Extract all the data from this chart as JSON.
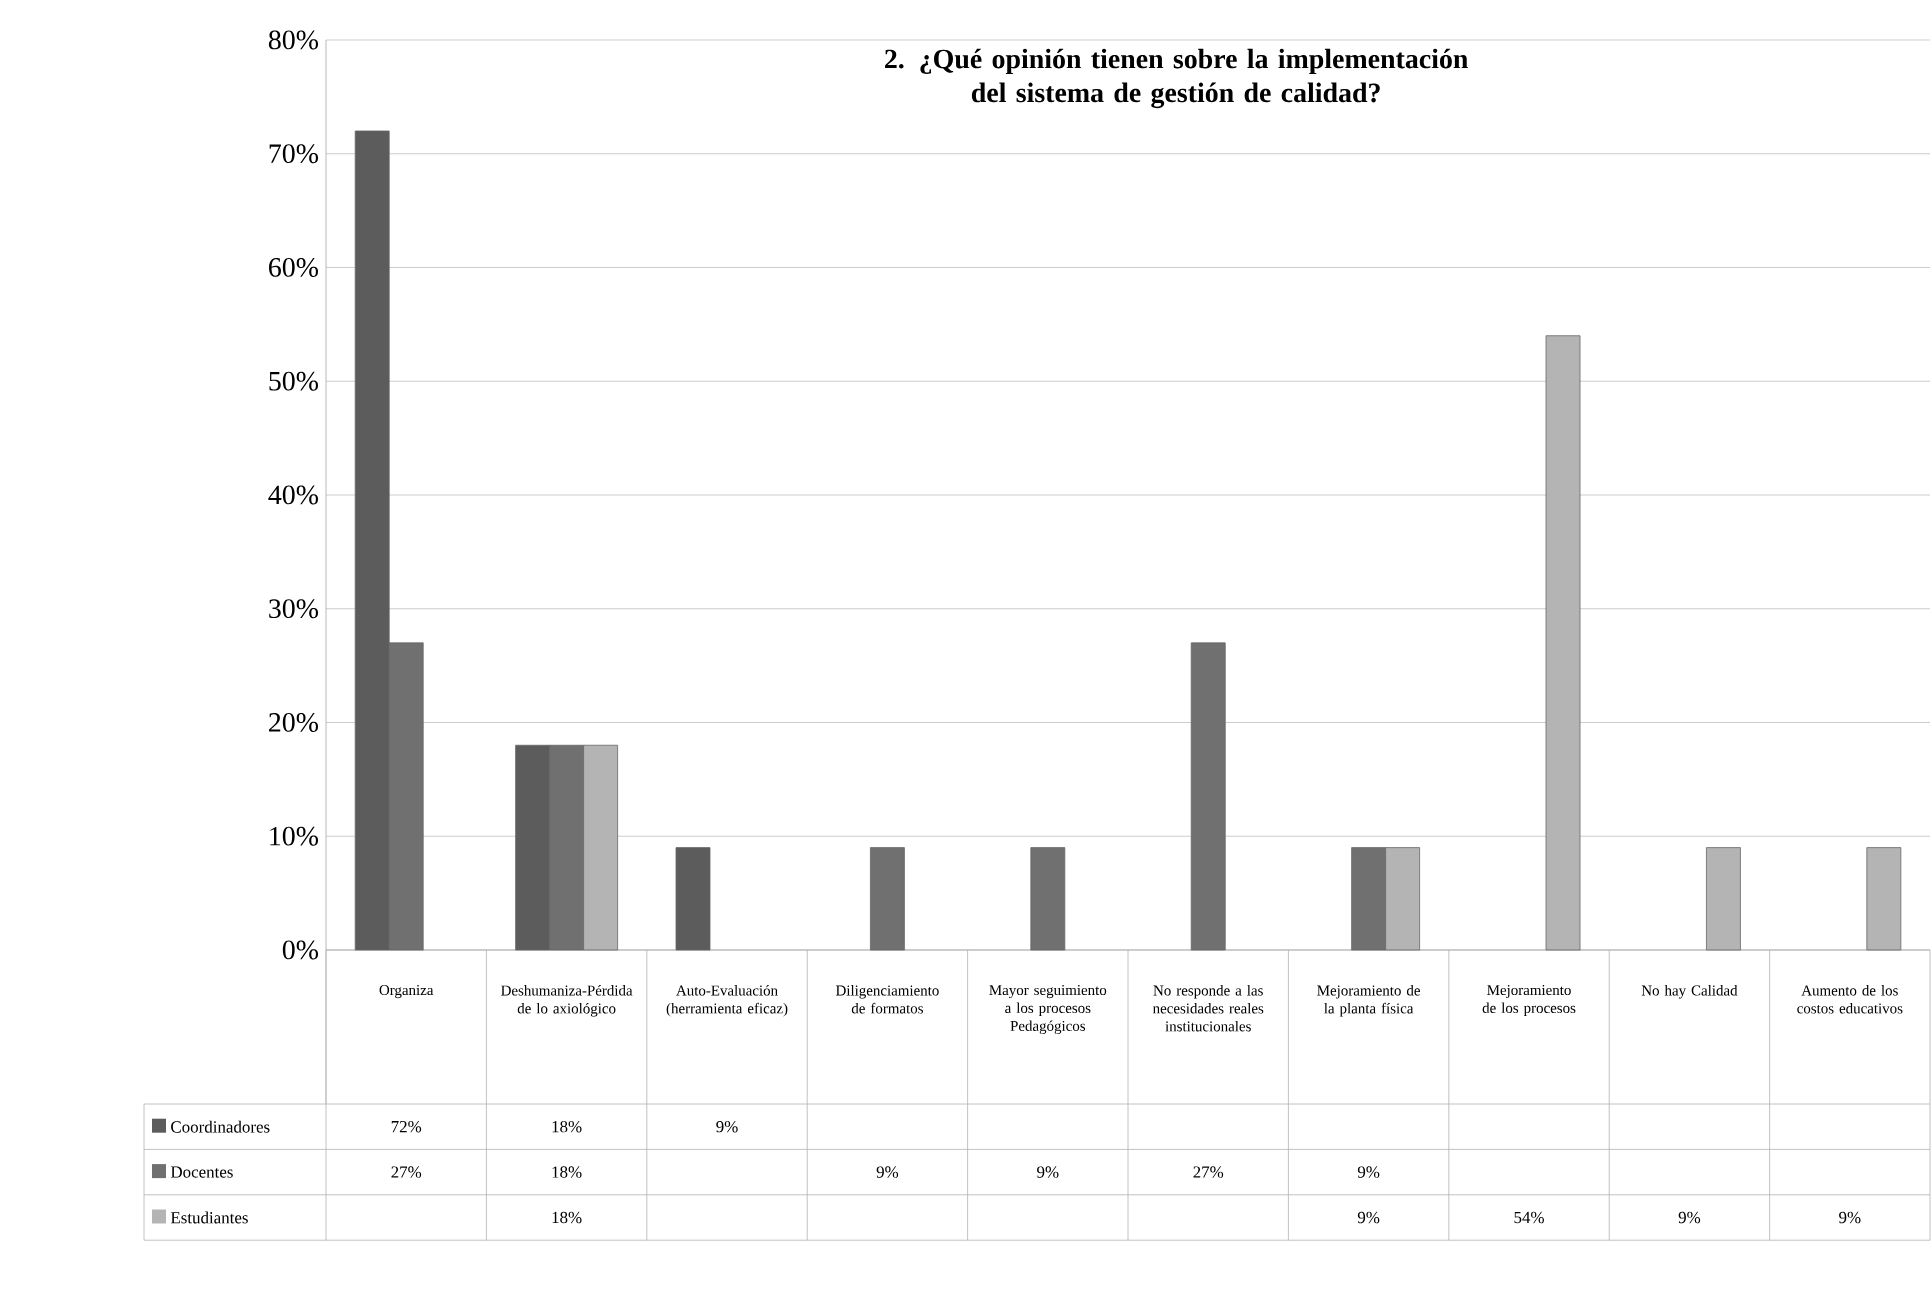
{
  "chart_data": {
    "type": "bar",
    "title": "2. ¿Qué opinión tienen sobre la implementación del sistema de gestión de calidad?",
    "categories": [
      "Organiza",
      "Deshumaniza-Pérdida de lo axiológico",
      "Auto-Evaluación (herramienta eficaz)",
      "Diligenciamiento de formatos",
      "Mayor seguimiento a los procesos Pedagógicos",
      "No responde a las necesidades reales institucionales",
      "Mejoramiento de la planta física",
      "Mejoramiento de los procesos",
      "No hay Calidad",
      "Aumento de los costos educativos"
    ],
    "series": [
      {
        "name": "Coordinadores",
        "color": "#5c5c5c",
        "values": [
          72,
          18,
          9,
          null,
          null,
          null,
          null,
          null,
          null,
          null
        ],
        "value_labels": [
          "72%",
          "18%",
          "9%",
          null,
          null,
          null,
          null,
          null,
          null,
          null
        ]
      },
      {
        "name": "Docentes",
        "color": "#707070",
        "values": [
          27,
          18,
          null,
          9,
          9,
          27,
          9,
          null,
          null,
          null
        ],
        "value_labels": [
          "27%",
          "18%",
          null,
          "9%",
          "9%",
          "27%",
          "9%",
          null,
          null,
          null
        ]
      },
      {
        "name": "Estudiantes",
        "color": "#b4b4b4",
        "values": [
          null,
          18,
          null,
          null,
          null,
          null,
          9,
          54,
          9,
          9
        ],
        "value_labels": [
          null,
          "18%",
          null,
          null,
          null,
          null,
          "9%",
          "54%",
          "9%",
          "9%"
        ]
      }
    ],
    "ylim": [
      0,
      80
    ],
    "yticks": [
      {
        "value": 0,
        "label": "0%"
      },
      {
        "value": 10,
        "label": "10%"
      },
      {
        "value": 20,
        "label": "20%"
      },
      {
        "value": 30,
        "label": "30%"
      },
      {
        "value": 40,
        "label": "40%"
      },
      {
        "value": 50,
        "label": "50%"
      },
      {
        "value": 60,
        "label": "60%"
      },
      {
        "value": 70,
        "label": "70%"
      },
      {
        "value": 80,
        "label": "80%"
      }
    ],
    "grid": "y",
    "legend": "bottom left"
  }
}
